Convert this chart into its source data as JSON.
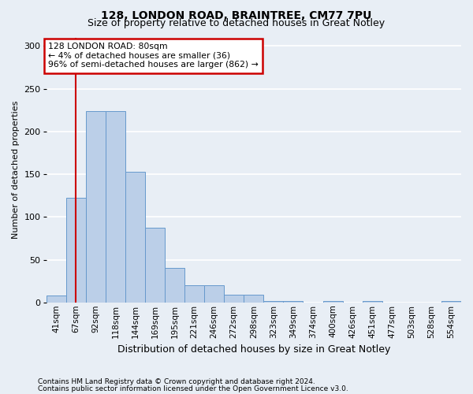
{
  "title1": "128, LONDON ROAD, BRAINTREE, CM77 7PU",
  "title2": "Size of property relative to detached houses in Great Notley",
  "xlabel": "Distribution of detached houses by size in Great Notley",
  "ylabel": "Number of detached properties",
  "footnote1": "Contains HM Land Registry data © Crown copyright and database right 2024.",
  "footnote2": "Contains public sector information licensed under the Open Government Licence v3.0.",
  "categories": [
    "41sqm",
    "67sqm",
    "92sqm",
    "118sqm",
    "144sqm",
    "169sqm",
    "195sqm",
    "221sqm",
    "246sqm",
    "272sqm",
    "298sqm",
    "323sqm",
    "349sqm",
    "374sqm",
    "400sqm",
    "426sqm",
    "451sqm",
    "477sqm",
    "503sqm",
    "528sqm",
    "554sqm"
  ],
  "bar_heights": [
    8,
    122,
    224,
    224,
    153,
    87,
    40,
    20,
    20,
    9,
    9,
    2,
    2,
    0,
    2,
    0,
    2,
    0,
    0,
    0,
    2
  ],
  "bar_color": "#BBCFE8",
  "bar_edge_color": "#6699CC",
  "red_line_x": 1,
  "annotation_text": "128 LONDON ROAD: 80sqm\n← 4% of detached houses are smaller (36)\n96% of semi-detached houses are larger (862) →",
  "ylim": [
    0,
    310
  ],
  "yticks": [
    0,
    50,
    100,
    150,
    200,
    250,
    300
  ],
  "bg_color": "#E8EEF5",
  "plot_bg_color": "#E8EEF5",
  "grid_color": "#FFFFFF",
  "annotation_box_color": "#FFFFFF",
  "annotation_box_edge": "#CC0000",
  "red_line_color": "#CC0000",
  "title1_fontsize": 10,
  "title2_fontsize": 9,
  "ylabel_fontsize": 8,
  "xlabel_fontsize": 9,
  "tick_fontsize": 7.5,
  "ytick_fontsize": 8
}
